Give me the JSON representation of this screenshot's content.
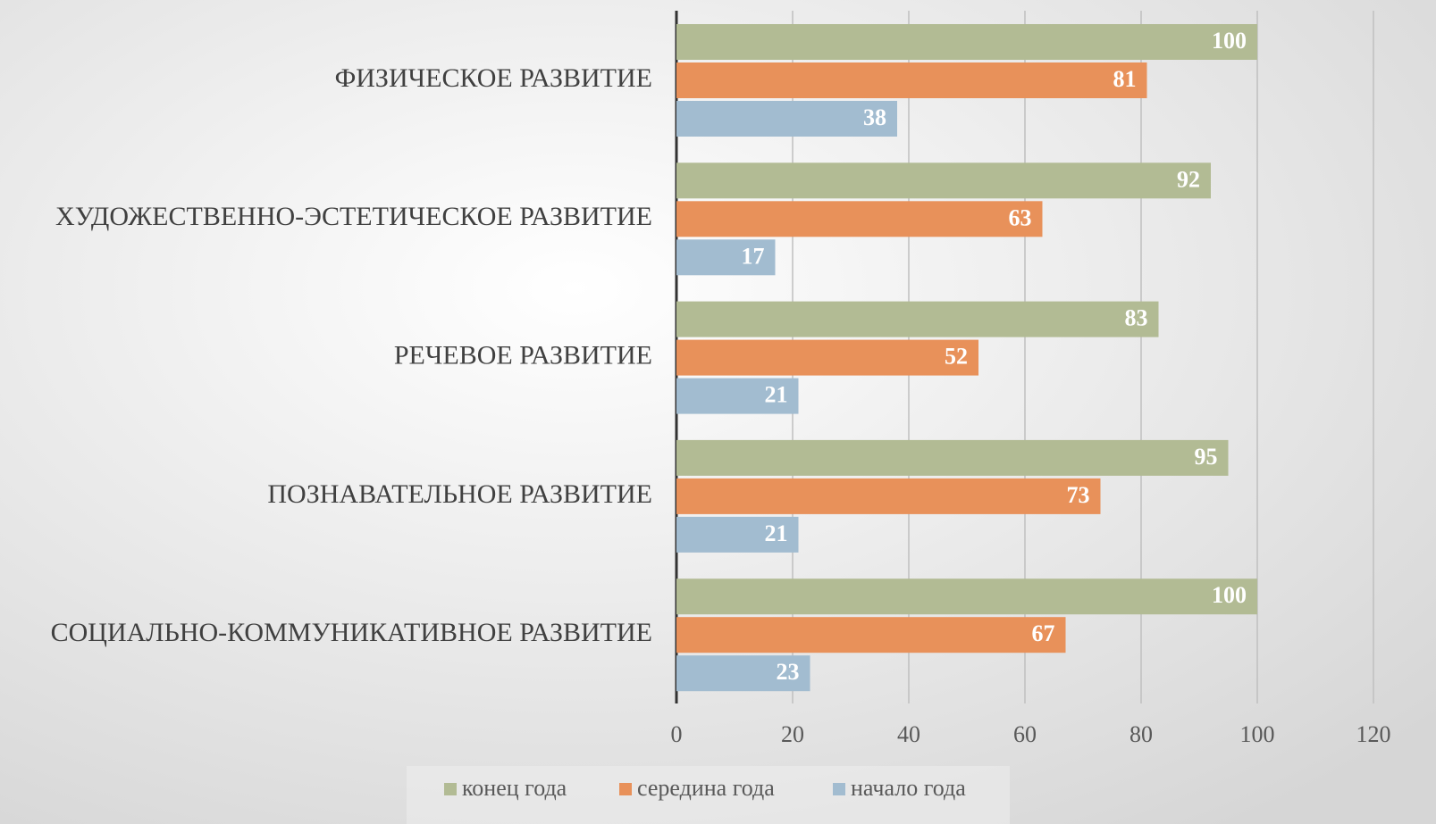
{
  "chart_data": {
    "type": "bar",
    "orientation": "horizontal",
    "categories": [
      "ФИЗИЧЕСКОЕ РАЗВИТИЕ",
      "ХУДОЖЕСТВЕННО-ЭСТЕТИЧЕСКОЕ РАЗВИТИЕ",
      "РЕЧЕВОЕ РАЗВИТИЕ",
      "ПОЗНАВАТЕЛЬНОЕ РАЗВИТИЕ",
      "СОЦИАЛЬНО-КОММУНИКАТИВНОЕ РАЗВИТИЕ"
    ],
    "series": [
      {
        "name": "конец года",
        "color": "#b2bb94",
        "values": [
          100,
          92,
          83,
          95,
          100
        ]
      },
      {
        "name": "середина года",
        "color": "#e8915a",
        "values": [
          81,
          63,
          52,
          73,
          67
        ]
      },
      {
        "name": "начало года",
        "color": "#a2bcd0",
        "values": [
          38,
          17,
          21,
          21,
          23
        ]
      }
    ],
    "xlim": [
      0,
      120
    ],
    "xticks": [
      0,
      20,
      40,
      60,
      80,
      100,
      120
    ],
    "grid": true,
    "legend": "bottom"
  }
}
